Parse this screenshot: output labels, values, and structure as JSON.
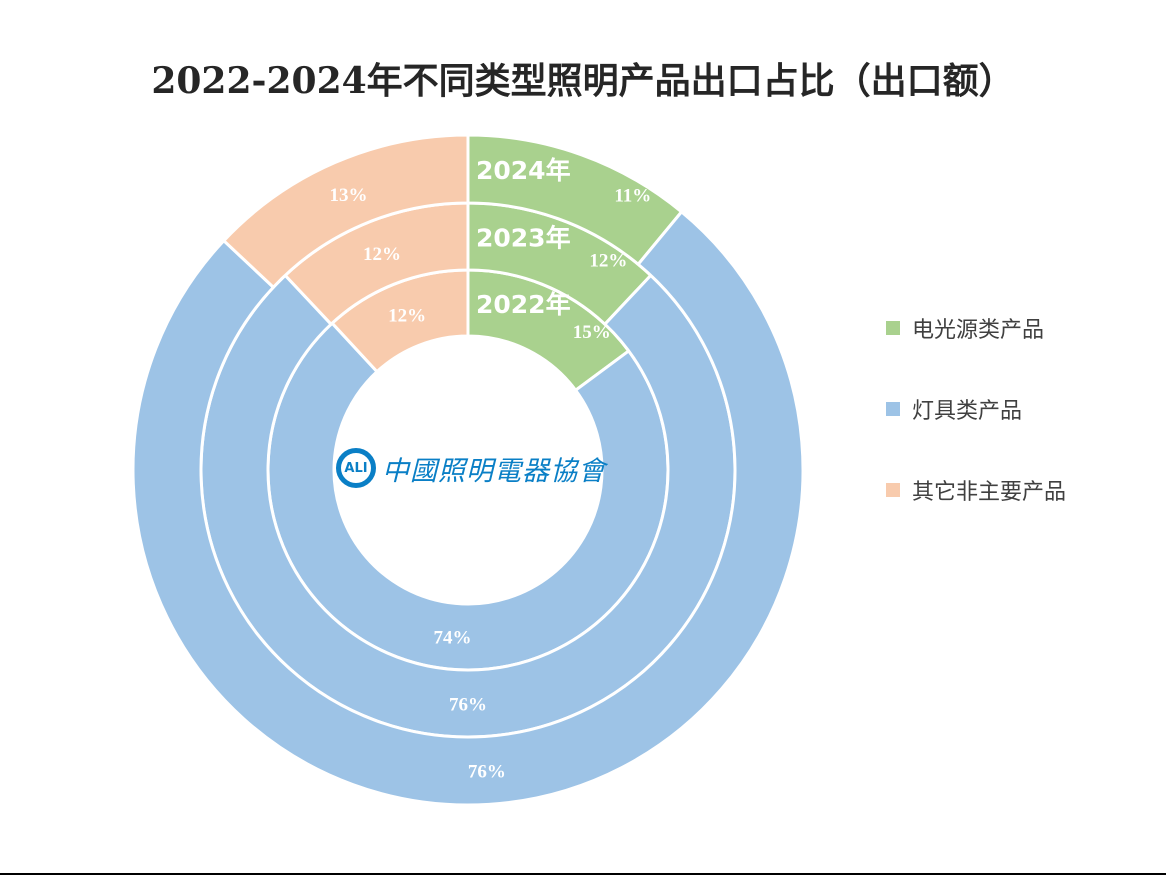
{
  "title": "2022-2024年不同类型照明产品出口占比（出口额）",
  "logo": {
    "mark": "ALI",
    "text": "中國照明電器協會",
    "icon": "cali-logo-icon"
  },
  "colors": {
    "electric_light_source": "#a9d18e",
    "lamps": "#9dc3e6",
    "other": "#f8cbad",
    "separator": "#ffffff"
  },
  "legend": [
    {
      "label": "电光源类产品",
      "color": "#a9d18e"
    },
    {
      "label": "灯具类产品",
      "color": "#9dc3e6"
    },
    {
      "label": "其它非主要产品",
      "color": "#f8cbad"
    }
  ],
  "rings": [
    {
      "year_label": "2022年",
      "values": [
        "15%",
        "74%",
        "12%"
      ]
    },
    {
      "year_label": "2023年",
      "values": [
        "12%",
        "76%",
        "12%"
      ]
    },
    {
      "year_label": "2024年",
      "values": [
        "11%",
        "76%",
        "13%"
      ]
    }
  ],
  "chart_data": {
    "type": "pie",
    "subtype": "multi-ring doughnut",
    "title": "2022-2024年不同类型照明产品出口占比（出口额）",
    "categories": [
      "电光源类产品",
      "灯具类产品",
      "其它非主要产品"
    ],
    "series": [
      {
        "name": "2022年",
        "ring": "inner",
        "values": [
          15,
          74,
          12
        ]
      },
      {
        "name": "2023年",
        "ring": "middle",
        "values": [
          12,
          76,
          12
        ]
      },
      {
        "name": "2024年",
        "ring": "outer",
        "values": [
          11,
          76,
          13
        ]
      }
    ],
    "unit": "%",
    "colors": [
      "#a9d18e",
      "#9dc3e6",
      "#f8cbad"
    ],
    "start_angle": "12 o'clock, clockwise",
    "legend_position": "right"
  }
}
